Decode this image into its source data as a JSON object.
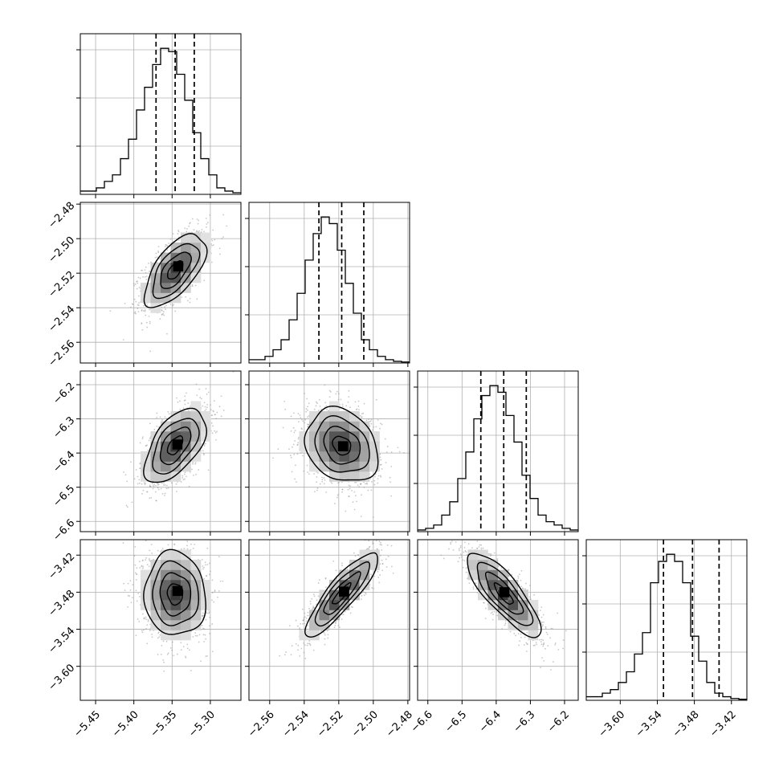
{
  "style": {
    "line_color": "#000000",
    "grid_color": "#b0b0b0",
    "scatter_color": "#9a9a9a",
    "density_dark": "#000000",
    "background": "#ffffff"
  },
  "chart_data": {
    "type": "corner",
    "grid": true,
    "n_params": 4,
    "parameters": [
      {
        "index": 0,
        "range": [
          -5.47,
          -5.26
        ],
        "ticks": [
          -5.45,
          -5.4,
          -5.35,
          -5.3
        ],
        "tick_labels": [
          "−5.45",
          "−5.40",
          "−5.35",
          "−5.30"
        ],
        "quantiles": [
          -5.371,
          -5.346,
          -5.321
        ]
      },
      {
        "index": 1,
        "range": [
          -2.572,
          -2.479
        ],
        "ticks": [
          -2.56,
          -2.54,
          -2.52,
          -2.5,
          -2.48
        ],
        "tick_labels": [
          "−2.56",
          "−2.54",
          "−2.52",
          "−2.50",
          "−2.48"
        ],
        "quantiles": [
          -2.5315,
          -2.5183,
          -2.5055
        ]
      },
      {
        "index": 2,
        "range": [
          -6.63,
          -6.16
        ],
        "ticks": [
          -6.6,
          -6.5,
          -6.4,
          -6.3,
          -6.2
        ],
        "tick_labels": [
          "−6.6",
          "−6.5",
          "−6.4",
          "−6.3",
          "−6.2"
        ],
        "quantiles": [
          -6.445,
          -6.378,
          -6.312
        ]
      },
      {
        "index": 3,
        "range": [
          -3.655,
          -3.395
        ],
        "ticks": [
          -3.6,
          -3.54,
          -3.48,
          -3.42
        ],
        "tick_labels": [
          "−3.60",
          "−3.54",
          "−3.48",
          "−3.42"
        ],
        "quantiles": [
          -3.53,
          -3.483,
          -3.44
        ]
      }
    ],
    "histograms": [
      {
        "param": 0,
        "counts": [
          1,
          1,
          2,
          4,
          6,
          11,
          17,
          26,
          33,
          40,
          45,
          44,
          37,
          29,
          19,
          11,
          6,
          2,
          1,
          0.5
        ]
      },
      {
        "param": 1,
        "counts": [
          1,
          1,
          2,
          4,
          7,
          13,
          21,
          31,
          39,
          44,
          42,
          34,
          24,
          15,
          7,
          4,
          2,
          1,
          0.5,
          0.3
        ]
      },
      {
        "param": 2,
        "counts": [
          0.5,
          1,
          2,
          5,
          9,
          16,
          24,
          34,
          41,
          44,
          42,
          35,
          27,
          17,
          10,
          5,
          3,
          2,
          1,
          0.5
        ]
      },
      {
        "param": 3,
        "counts": [
          1,
          1,
          2,
          3,
          5,
          8,
          13,
          19,
          33,
          39,
          41,
          39,
          33,
          18,
          11,
          5,
          2,
          1,
          0.5,
          0.3
        ]
      }
    ],
    "pairs": [
      {
        "x_param": 0,
        "y_param": 1,
        "mean": [
          -5.346,
          -2.5183
        ],
        "sigma": [
          0.02,
          0.0105
        ],
        "rho": 0.62,
        "peak": [
          -5.342,
          -2.516
        ]
      },
      {
        "x_param": 0,
        "y_param": 2,
        "mean": [
          -5.346,
          -6.378
        ],
        "sigma": [
          0.02,
          0.054
        ],
        "rho": 0.55,
        "peak": [
          -5.343,
          -6.375
        ]
      },
      {
        "x_param": 1,
        "y_param": 2,
        "mean": [
          -2.5183,
          -6.378
        ],
        "sigma": [
          0.0105,
          0.054
        ],
        "rho": -0.22,
        "peak": [
          -2.5175,
          -6.38
        ]
      },
      {
        "x_param": 0,
        "y_param": 3,
        "mean": [
          -5.346,
          -3.483
        ],
        "sigma": [
          0.02,
          0.034
        ],
        "rho": -0.05,
        "peak": [
          -5.343,
          -3.478
        ]
      },
      {
        "x_param": 1,
        "y_param": 3,
        "mean": [
          -2.5183,
          -3.483
        ],
        "sigma": [
          0.0105,
          0.034
        ],
        "rho": 0.87,
        "peak": [
          -2.517,
          -3.479
        ]
      },
      {
        "x_param": 2,
        "y_param": 3,
        "mean": [
          -6.378,
          -3.483
        ],
        "sigma": [
          0.054,
          0.034
        ],
        "rho": -0.82,
        "peak": [
          -6.376,
          -3.48
        ]
      }
    ],
    "contour_levels_sigma": [
      0.5,
      1.0,
      1.5,
      2.0
    ]
  }
}
